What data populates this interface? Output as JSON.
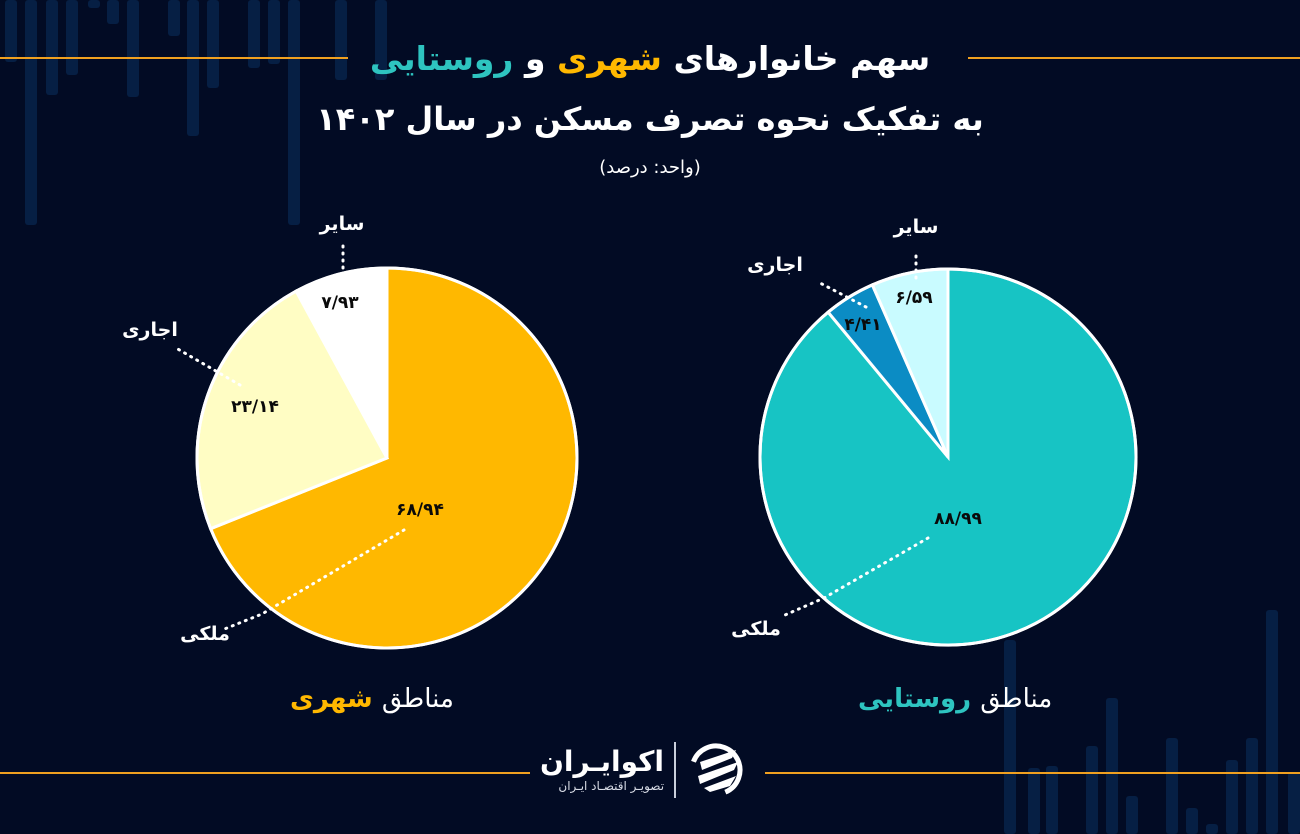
{
  "title": {
    "part1": "سهم خانوارهای",
    "highlight_urban": "شهری",
    "connector": "و",
    "highlight_rural": "روستایی",
    "line2": "به تفکیک نحوه تصرف مسکن در سال ۱۴۰۲",
    "unit": "(واحد: درصد)"
  },
  "colors": {
    "background": "#020b24",
    "rule": "#f0a020",
    "urban_accent": "#ffb800",
    "rural_accent": "#2ec4c0"
  },
  "regions": {
    "urban": {
      "prefix": "مناطق",
      "name": "شهری"
    },
    "rural": {
      "prefix": "مناطق",
      "name": "روستایی"
    }
  },
  "logo": {
    "name": "اکوایـران",
    "tagline": "تصویـر اقتصـاد ایـران"
  },
  "chart_data": [
    {
      "type": "pie",
      "title": "مناطق شهری",
      "unit": "درصد",
      "categories": [
        "ملکی",
        "اجاری",
        "سایر"
      ],
      "values": [
        68.94,
        23.14,
        7.93
      ],
      "value_labels": [
        "۶۸/۹۴",
        "۲۳/۱۴",
        "۷/۹۳"
      ],
      "colors": [
        "#ffb800",
        "#fffdc4",
        "#ffffff"
      ],
      "start_angle": "12 o'clock, clockwise",
      "legend": "callout labels"
    },
    {
      "type": "pie",
      "title": "مناطق روستایی",
      "unit": "درصد",
      "categories": [
        "ملکی",
        "اجاری",
        "سایر"
      ],
      "values": [
        88.99,
        4.41,
        6.59
      ],
      "value_labels": [
        "۸۸/۹۹",
        "۴/۴۱",
        "۶/۵۹"
      ],
      "colors": [
        "#17c4c4",
        "#0b8cc4",
        "#c9fbff"
      ],
      "start_angle": "12 o'clock, clockwise",
      "legend": "callout labels"
    }
  ]
}
